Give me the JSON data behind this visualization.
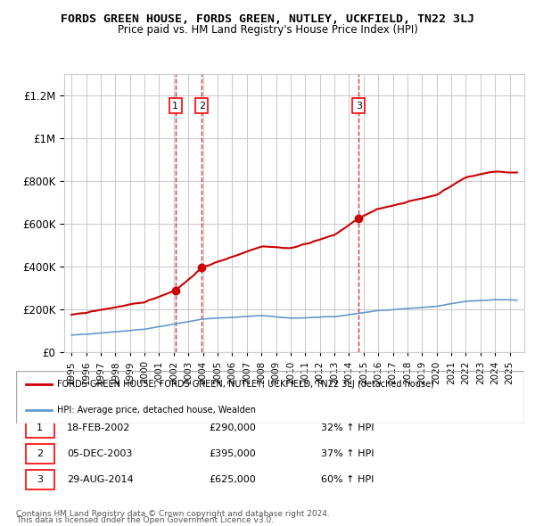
{
  "title": "FORDS GREEN HOUSE, FORDS GREEN, NUTLEY, UCKFIELD, TN22 3LJ",
  "subtitle": "Price paid vs. HM Land Registry's House Price Index (HPI)",
  "legend_red": "FORDS GREEN HOUSE, FORDS GREEN, NUTLEY, UCKFIELD, TN22 3LJ (detached house)",
  "legend_blue": "HPI: Average price, detached house, Wealden",
  "transactions": [
    {
      "num": 1,
      "date": "18-FEB-2002",
      "price": 290000,
      "hpi_pct": "32% ↑ HPI",
      "year": 2002.12
    },
    {
      "num": 2,
      "date": "05-DEC-2003",
      "price": 395000,
      "hpi_pct": "37% ↑ HPI",
      "year": 2003.92
    },
    {
      "num": 3,
      "date": "29-AUG-2014",
      "price": 625000,
      "hpi_pct": "60% ↑ HPI",
      "year": 2014.66
    }
  ],
  "footer1": "Contains HM Land Registry data © Crown copyright and database right 2024.",
  "footer2": "This data is licensed under the Open Government Licence v3.0.",
  "ylim": [
    0,
    1300000
  ],
  "yticks": [
    0,
    200000,
    400000,
    600000,
    800000,
    1000000,
    1200000
  ],
  "red_color": "#cc0000",
  "blue_color": "#6699cc",
  "vline_color": "#cc0000",
  "bg_color": "#ffffff",
  "grid_color": "#cccccc"
}
